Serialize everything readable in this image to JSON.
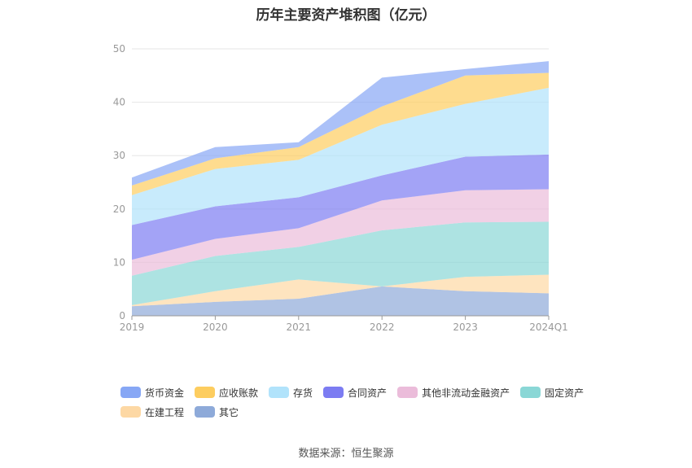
{
  "title": "历年主要资产堆积图（亿元）",
  "source": "数据来源：恒生聚源",
  "chart_data": {
    "type": "area",
    "stacked": true,
    "categories": [
      "2019",
      "2020",
      "2021",
      "2022",
      "2023",
      "2024Q1"
    ],
    "ylim": [
      0,
      50
    ],
    "yticks": [
      0,
      10,
      20,
      30,
      40,
      50
    ],
    "grid": true,
    "legend_position": "bottom",
    "series": [
      {
        "name": "其它",
        "color": "#8eaad9",
        "values": [
          1.8,
          2.6,
          3.2,
          5.5,
          4.6,
          4.2
        ]
      },
      {
        "name": "在建工程",
        "color": "#fdd8a4",
        "values": [
          0.2,
          2.0,
          3.6,
          0.0,
          2.7,
          3.5
        ]
      },
      {
        "name": "固定资产",
        "color": "#8ad7d6",
        "values": [
          5.5,
          6.6,
          6.1,
          10.5,
          10.2,
          9.9
        ]
      },
      {
        "name": "其他非流动金融资产",
        "color": "#ebbcda",
        "values": [
          3.0,
          3.2,
          3.5,
          5.6,
          6.0,
          6.1
        ]
      },
      {
        "name": "合同资产",
        "color": "#7c7cf2",
        "values": [
          6.5,
          6.1,
          5.8,
          4.7,
          6.3,
          6.5
        ]
      },
      {
        "name": "存货",
        "color": "#b1e3fb",
        "values": [
          5.6,
          7.0,
          7.0,
          9.5,
          9.9,
          12.5
        ]
      },
      {
        "name": "应收账款",
        "color": "#fdcd5f",
        "values": [
          1.8,
          2.0,
          2.4,
          3.4,
          5.3,
          2.8
        ]
      },
      {
        "name": "货币资金",
        "color": "#87a7f5",
        "values": [
          1.5,
          2.1,
          0.9,
          5.4,
          1.2,
          2.2
        ]
      }
    ],
    "legend_order": [
      "货币资金",
      "应收账款",
      "存货",
      "合同资产",
      "其他非流动金融资产",
      "固定资产",
      "在建工程",
      "其它"
    ]
  }
}
